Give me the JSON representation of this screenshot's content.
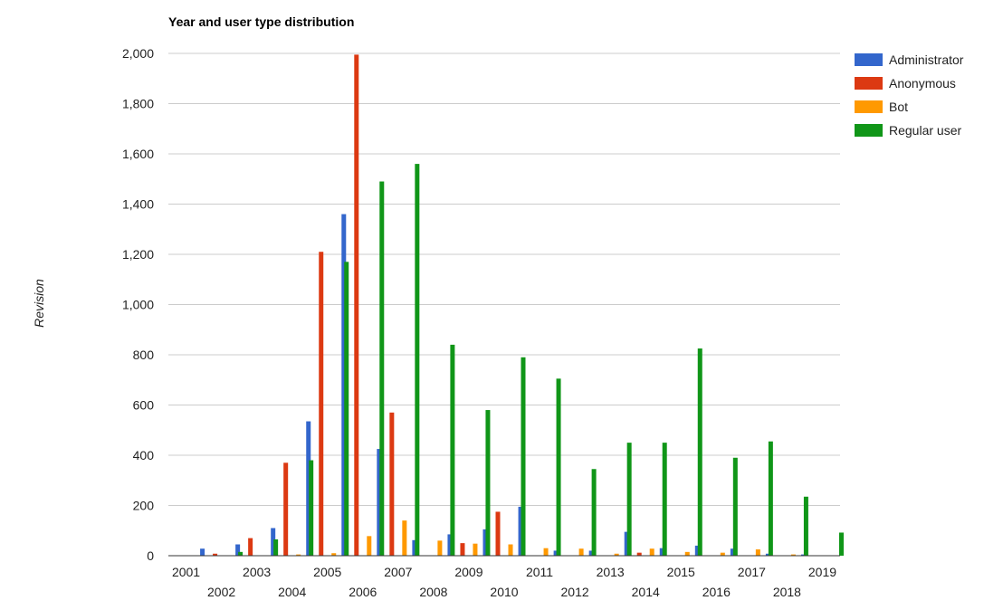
{
  "chart_data": {
    "type": "bar",
    "title": "Year and user type distribution",
    "xlabel": "",
    "ylabel": "Revision",
    "ylim": [
      0,
      2000
    ],
    "yticks": [
      0,
      200,
      400,
      600,
      800,
      1000,
      1200,
      1400,
      1600,
      1800,
      2000
    ],
    "ytick_labels": [
      "0",
      "200",
      "400",
      "600",
      "800",
      "1,000",
      "1,200",
      "1,400",
      "1,600",
      "1,800",
      "2,000"
    ],
    "grid": true,
    "legend_position": "right",
    "categories": [
      "2001",
      "2002",
      "2003",
      "2004",
      "2005",
      "2006",
      "2007",
      "2008",
      "2009",
      "2010",
      "2011",
      "2012",
      "2013",
      "2014",
      "2015",
      "2016",
      "2017",
      "2018",
      "2019"
    ],
    "series": [
      {
        "name": "Administrator",
        "color": "#3366cc",
        "values": [
          0,
          28,
          45,
          110,
          535,
          1360,
          425,
          62,
          85,
          105,
          195,
          20,
          20,
          95,
          30,
          40,
          28,
          8,
          5
        ]
      },
      {
        "name": "Anonymous",
        "color": "#dc3912",
        "values": [
          0,
          8,
          70,
          370,
          1210,
          1995,
          570,
          0,
          50,
          175,
          0,
          0,
          0,
          12,
          0,
          0,
          0,
          0,
          0
        ]
      },
      {
        "name": "Bot",
        "color": "#ff9900",
        "values": [
          0,
          0,
          0,
          5,
          10,
          78,
          140,
          60,
          48,
          45,
          30,
          28,
          8,
          28,
          15,
          12,
          25,
          5,
          0
        ]
      },
      {
        "name": "Regular user",
        "color": "#109618",
        "values": [
          0,
          15,
          65,
          380,
          1170,
          1490,
          1560,
          840,
          580,
          790,
          705,
          345,
          450,
          450,
          825,
          390,
          455,
          235,
          92
        ]
      }
    ]
  }
}
